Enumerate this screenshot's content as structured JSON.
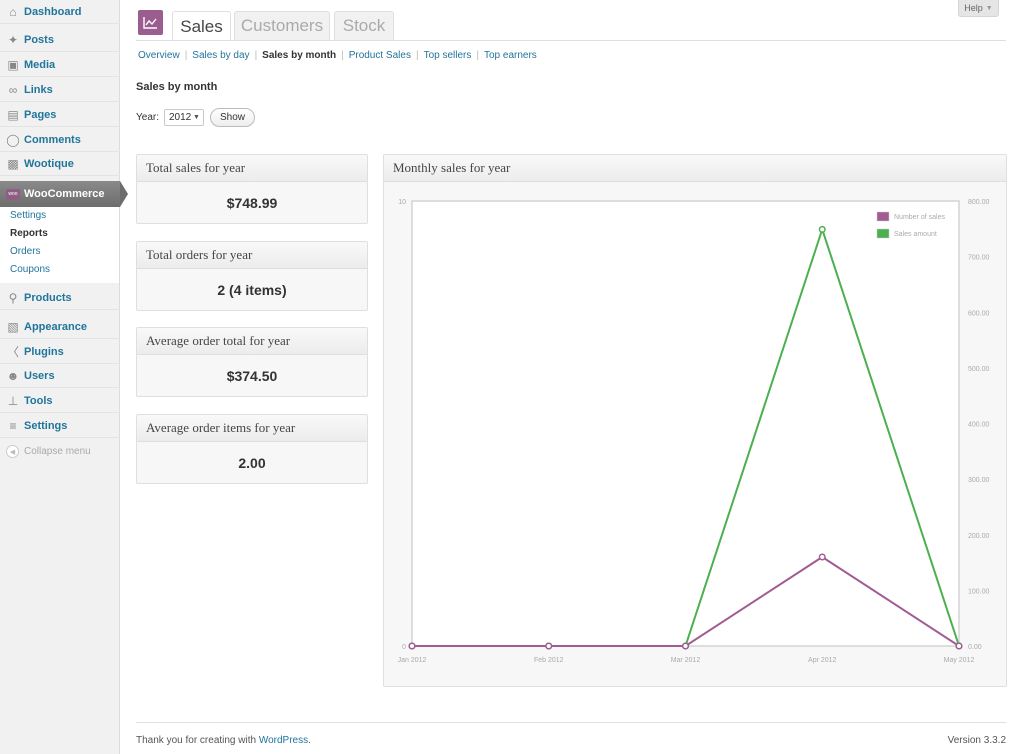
{
  "sidebar": {
    "items": [
      {
        "label": "Dashboard",
        "icon": "dashboard-icon"
      },
      {
        "label": "Posts",
        "icon": "pushpin-icon"
      },
      {
        "label": "Media",
        "icon": "media-icon"
      },
      {
        "label": "Links",
        "icon": "link-icon"
      },
      {
        "label": "Pages",
        "icon": "pages-icon"
      },
      {
        "label": "Comments",
        "icon": "comments-icon"
      },
      {
        "label": "Wootique",
        "icon": "wootique-icon"
      },
      {
        "label": "WooCommerce",
        "icon": "woo-icon"
      },
      {
        "label": "Products",
        "icon": "cart-icon"
      },
      {
        "label": "Appearance",
        "icon": "appearance-icon"
      },
      {
        "label": "Plugins",
        "icon": "plugin-icon"
      },
      {
        "label": "Users",
        "icon": "users-icon"
      },
      {
        "label": "Tools",
        "icon": "tools-icon"
      },
      {
        "label": "Settings",
        "icon": "settings-icon"
      }
    ],
    "woo_badge": "woo",
    "submenu": [
      "Settings",
      "Reports",
      "Orders",
      "Coupons"
    ],
    "collapse_label": "Collapse menu"
  },
  "header": {
    "help_label": "Help",
    "tabs": [
      "Sales",
      "Customers",
      "Stock"
    ]
  },
  "subnav": [
    "Overview",
    "Sales by day",
    "Sales by month",
    "Product Sales",
    "Top sellers",
    "Top earners"
  ],
  "page": {
    "heading": "Sales by month",
    "year_label": "Year:",
    "year_value": "2012",
    "show_button": "Show"
  },
  "stats": [
    {
      "title": "Total sales for year",
      "value": "$748.99"
    },
    {
      "title": "Total orders for year",
      "value": "2 (4 items)"
    },
    {
      "title": "Average order total for year",
      "value": "$374.50"
    },
    {
      "title": "Average order items for year",
      "value": "2.00"
    }
  ],
  "chart_title": "Monthly sales for year",
  "chart_data": {
    "type": "line",
    "x": [
      "Jan 2012",
      "Feb 2012",
      "Mar 2012",
      "Apr 2012",
      "May 2012"
    ],
    "series": [
      {
        "name": "Number of sales",
        "axis": "left",
        "color": "#a05c93",
        "values": [
          0,
          0,
          0,
          2,
          0
        ]
      },
      {
        "name": "Sales amount",
        "axis": "right",
        "color": "#4caf50",
        "values": [
          0,
          0,
          0,
          748.99,
          0
        ]
      }
    ],
    "left_axis": {
      "ylim": [
        0,
        10
      ],
      "ticks": [
        "0",
        "10"
      ]
    },
    "right_axis": {
      "ylim": [
        0,
        800
      ],
      "ticks": [
        "0.00",
        "100.00",
        "200.00",
        "300.00",
        "400.00",
        "500.00",
        "600.00",
        "700.00",
        "800.00"
      ]
    },
    "legend_position": "top-right",
    "grid": false
  },
  "footer": {
    "thanks_prefix": "Thank you for creating with",
    "thanks_link": "WordPress",
    "thanks_suffix": ".",
    "version": "Version 3.3.2"
  },
  "colors": {
    "accent": "#21759b",
    "brand": "#9b5c8f",
    "line_sales": "#a05c93",
    "line_amount": "#4caf50"
  }
}
